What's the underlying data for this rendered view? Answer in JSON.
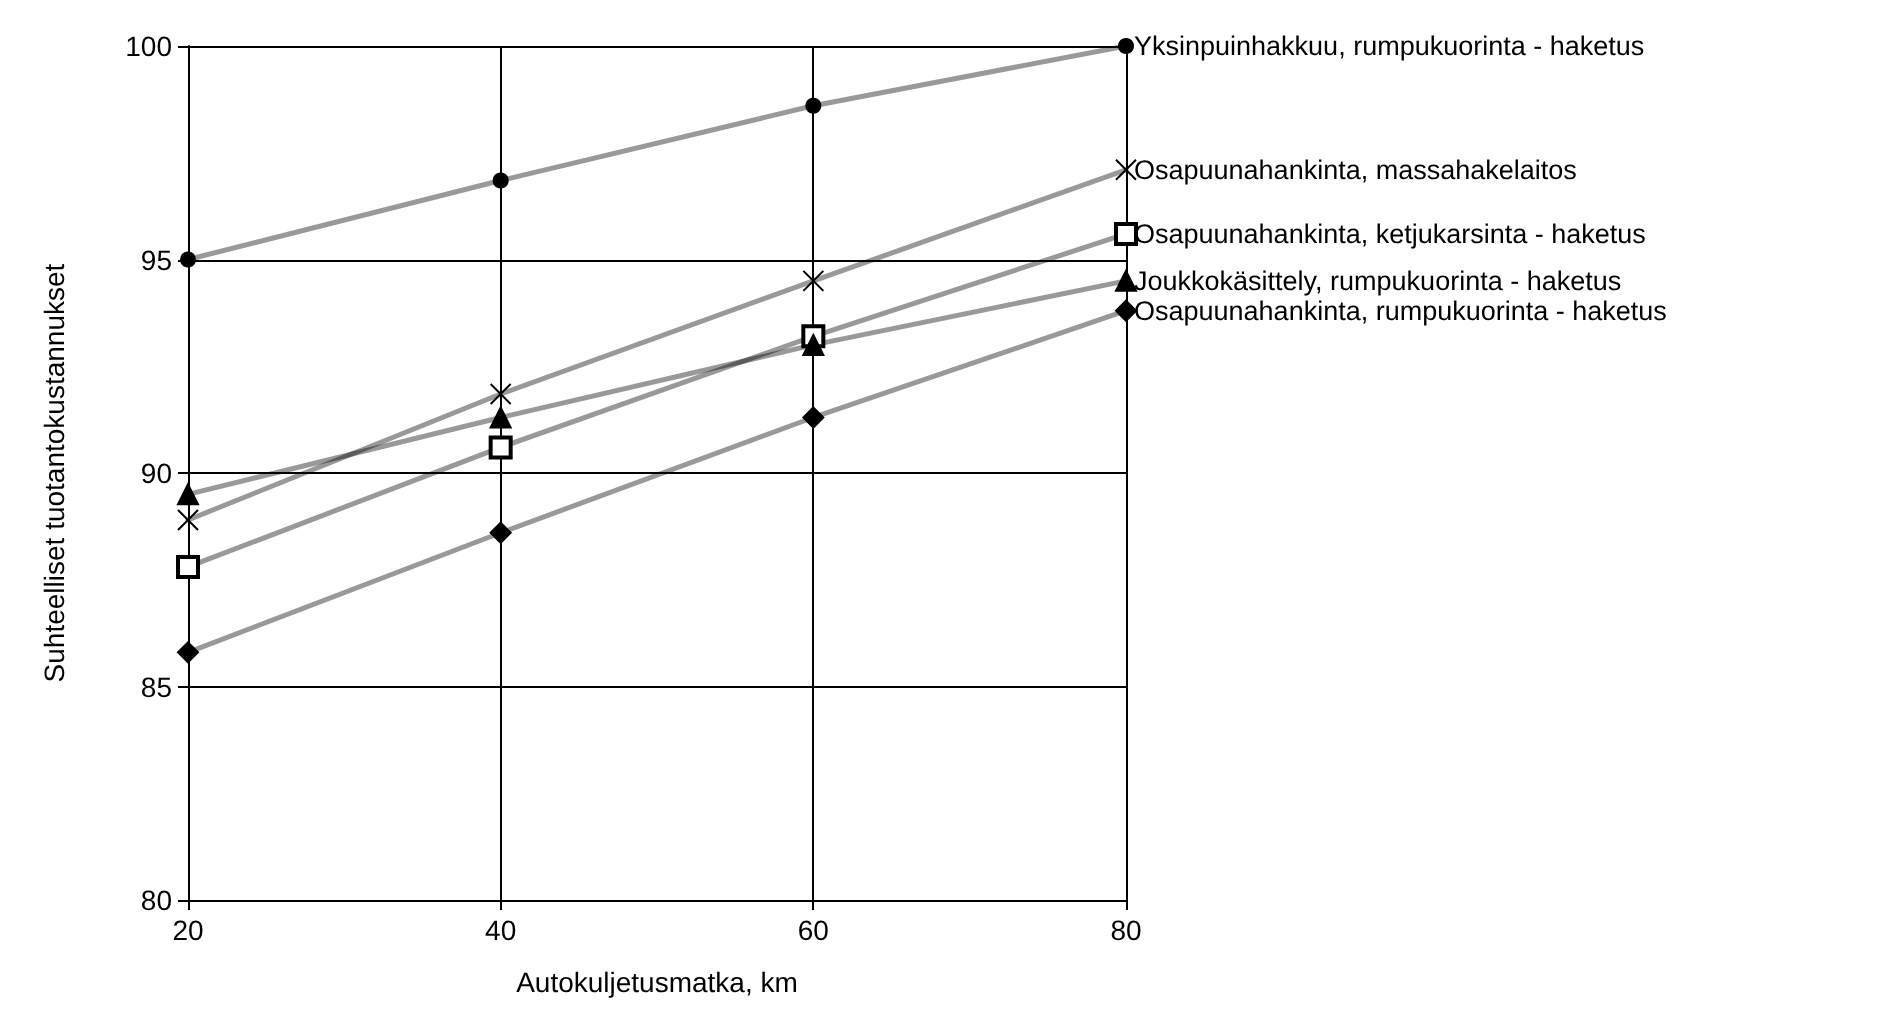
{
  "chart_data": {
    "type": "line",
    "xlabel": "Autokuljetusmatka, km",
    "ylabel": "Suhteelliset tuotantokustannukset",
    "x": [
      20,
      40,
      60,
      80
    ],
    "xlim": [
      20,
      80
    ],
    "xticks": [
      20,
      40,
      60,
      80
    ],
    "ylim": [
      80,
      100
    ],
    "yticks": [
      80,
      85,
      90,
      95,
      100
    ],
    "grid": true,
    "legend": false,
    "series": [
      {
        "name": "Yksinpuinhakkuu, rumpukuorinta - haketus",
        "color": "#000000",
        "marker": "circle",
        "values": [
          95.0,
          96.85,
          98.6,
          100
        ]
      },
      {
        "name": "Osapuunahankinta, massahakelaitos",
        "color": "#000000",
        "marker": "cross",
        "values": [
          88.9,
          91.85,
          94.5,
          97.1
        ]
      },
      {
        "name": "Osapuunahankinta, ketjukarsinta - haketus",
        "color": "#000000",
        "marker": "square",
        "values": [
          87.8,
          90.6,
          93.2,
          95.6
        ]
      },
      {
        "name": "Joukkokäsittely, rumpukuorinta - haketus",
        "color": "#000000",
        "marker": "triangle",
        "values": [
          89.5,
          91.3,
          93.0,
          94.5
        ]
      },
      {
        "name": "Osapuunahankinta, rumpukuorinta - haketus",
        "color": "#000000",
        "marker": "diamond",
        "values": [
          85.8,
          88.6,
          91.3,
          93.8
        ]
      }
    ]
  }
}
